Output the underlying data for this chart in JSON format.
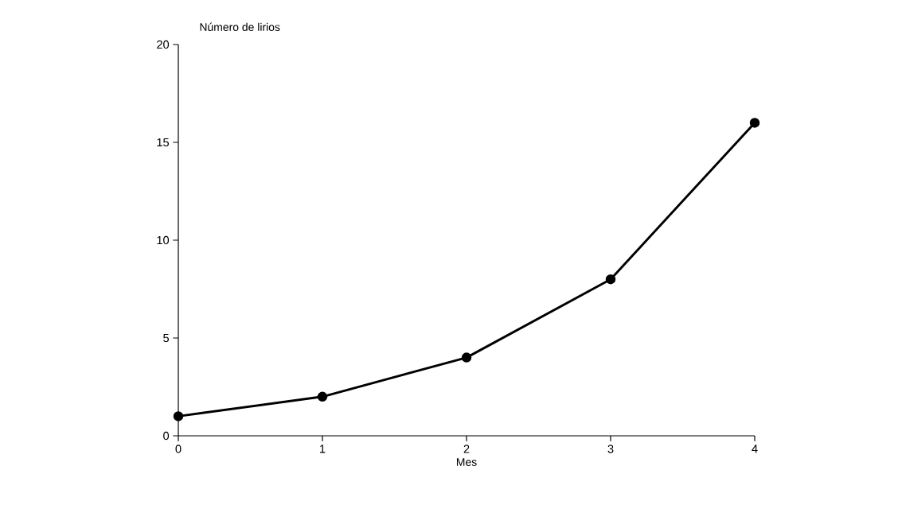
{
  "chart_data": {
    "type": "line",
    "xlabel": "Mes",
    "ylabel": "Número de lirios",
    "x": [
      0,
      1,
      2,
      3,
      4
    ],
    "series": [
      {
        "color": "#000000",
        "values": [
          1,
          2,
          4,
          8,
          16
        ]
      }
    ],
    "xlim": [
      0,
      4
    ],
    "xticks": [
      0,
      1,
      2,
      3,
      4
    ],
    "ylim": [
      0,
      20
    ],
    "yticks": [
      0,
      5,
      10,
      15,
      20
    ],
    "grid": false,
    "marker": "circle",
    "line_style": "solid"
  }
}
